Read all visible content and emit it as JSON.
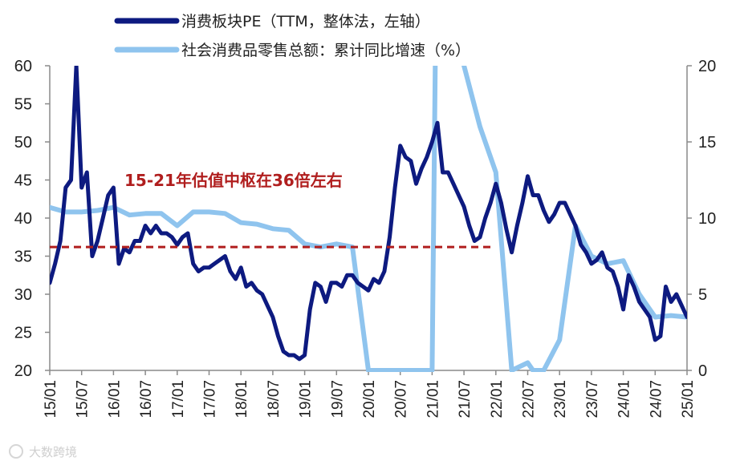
{
  "chart_data": {
    "type": "line",
    "x_ticks": [
      "15/01",
      "15/07",
      "16/01",
      "16/07",
      "17/01",
      "17/07",
      "18/01",
      "18/07",
      "19/01",
      "19/07",
      "20/01",
      "20/07",
      "21/01",
      "21/07",
      "22/01",
      "22/07",
      "23/01",
      "23/07",
      "24/01",
      "24/07",
      "25/01"
    ],
    "y_left": {
      "min": 20,
      "max": 60,
      "ticks": [
        20,
        25,
        30,
        35,
        40,
        45,
        50,
        55,
        60
      ]
    },
    "y_right": {
      "min": 0,
      "max": 20,
      "ticks": [
        0,
        5,
        10,
        15,
        20
      ]
    },
    "series": [
      {
        "name": "消费板块PE（TTM，整体法，左轴）",
        "axis": "left",
        "color": "#0d1a80",
        "points": [
          [
            "15/01",
            31.5
          ],
          [
            "15/02",
            34
          ],
          [
            "15/03",
            37
          ],
          [
            "15/04",
            44
          ],
          [
            "15/05",
            45
          ],
          [
            "15/06",
            60
          ],
          [
            "15/07",
            44
          ],
          [
            "15/08",
            46
          ],
          [
            "15/09",
            35
          ],
          [
            "15/10",
            37
          ],
          [
            "15/11",
            40
          ],
          [
            "15/12",
            43
          ],
          [
            "16/01",
            44
          ],
          [
            "16/02",
            34
          ],
          [
            "16/03",
            36
          ],
          [
            "16/04",
            35.5
          ],
          [
            "16/05",
            37
          ],
          [
            "16/06",
            37
          ],
          [
            "16/07",
            39
          ],
          [
            "16/08",
            38
          ],
          [
            "16/09",
            39
          ],
          [
            "16/10",
            38
          ],
          [
            "16/11",
            38
          ],
          [
            "16/12",
            37.5
          ],
          [
            "17/01",
            36.5
          ],
          [
            "17/02",
            37.5
          ],
          [
            "17/03",
            38
          ],
          [
            "17/04",
            34
          ],
          [
            "17/05",
            33
          ],
          [
            "17/06",
            33.5
          ],
          [
            "17/07",
            33.5
          ],
          [
            "17/08",
            34
          ],
          [
            "17/09",
            34.5
          ],
          [
            "17/10",
            35
          ],
          [
            "17/11",
            33
          ],
          [
            "17/12",
            32
          ],
          [
            "18/01",
            33.5
          ],
          [
            "18/02",
            31
          ],
          [
            "18/03",
            31.5
          ],
          [
            "18/04",
            30.5
          ],
          [
            "18/05",
            30
          ],
          [
            "18/06",
            28.5
          ],
          [
            "18/07",
            27
          ],
          [
            "18/08",
            24.5
          ],
          [
            "18/09",
            22.5
          ],
          [
            "18/10",
            22
          ],
          [
            "18/11",
            22
          ],
          [
            "18/12",
            21.5
          ],
          [
            "19/01",
            22
          ],
          [
            "19/02",
            28
          ],
          [
            "19/03",
            31.5
          ],
          [
            "19/04",
            31
          ],
          [
            "19/05",
            29
          ],
          [
            "19/06",
            31.5
          ],
          [
            "19/07",
            31.5
          ],
          [
            "19/08",
            31
          ],
          [
            "19/09",
            32.5
          ],
          [
            "19/10",
            32.5
          ],
          [
            "19/11",
            31.5
          ],
          [
            "19/12",
            31
          ],
          [
            "20/01",
            30.5
          ],
          [
            "20/02",
            32
          ],
          [
            "20/03",
            31.5
          ],
          [
            "20/04",
            33
          ],
          [
            "20/05",
            37.5
          ],
          [
            "20/06",
            44
          ],
          [
            "20/07",
            49.5
          ],
          [
            "20/08",
            48
          ],
          [
            "20/09",
            47.5
          ],
          [
            "20/10",
            44.5
          ],
          [
            "20/11",
            46.5
          ],
          [
            "20/12",
            48
          ],
          [
            "21/01",
            50
          ],
          [
            "21/02",
            52.5
          ],
          [
            "21/03",
            46
          ],
          [
            "21/04",
            46
          ],
          [
            "21/05",
            44.5
          ],
          [
            "21/06",
            43
          ],
          [
            "21/07",
            41.5
          ],
          [
            "21/08",
            39
          ],
          [
            "21/09",
            37
          ],
          [
            "21/10",
            37.5
          ],
          [
            "21/11",
            40
          ],
          [
            "21/12",
            42
          ],
          [
            "22/01",
            44.5
          ],
          [
            "22/02",
            42
          ],
          [
            "22/03",
            38.5
          ],
          [
            "22/04",
            35.5
          ],
          [
            "22/05",
            39
          ],
          [
            "22/06",
            42
          ],
          [
            "22/07",
            45.5
          ],
          [
            "22/08",
            43
          ],
          [
            "22/09",
            43
          ],
          [
            "22/10",
            41
          ],
          [
            "22/11",
            39.5
          ],
          [
            "22/12",
            40.5
          ],
          [
            "23/01",
            42
          ],
          [
            "23/02",
            42
          ],
          [
            "23/03",
            40.5
          ],
          [
            "23/04",
            39
          ],
          [
            "23/05",
            36.5
          ],
          [
            "23/06",
            35.5
          ],
          [
            "23/07",
            34
          ],
          [
            "23/08",
            34.5
          ],
          [
            "23/09",
            35.5
          ],
          [
            "23/10",
            33.5
          ],
          [
            "23/11",
            33
          ],
          [
            "23/12",
            31
          ],
          [
            "24/01",
            28
          ],
          [
            "24/02",
            32.5
          ],
          [
            "24/03",
            31
          ],
          [
            "24/04",
            29
          ],
          [
            "24/05",
            28
          ],
          [
            "24/06",
            27
          ],
          [
            "24/07",
            24
          ],
          [
            "24/08",
            24.5
          ],
          [
            "24/09",
            31
          ],
          [
            "24/10",
            29
          ],
          [
            "24/11",
            30
          ],
          [
            "24/12",
            28.5
          ],
          [
            "25/01",
            27
          ]
        ]
      },
      {
        "name": "社会消费品零售总额：累计同比增速（%）",
        "axis": "right",
        "color": "#8fc4ee",
        "points": [
          [
            "15/01",
            10.7
          ],
          [
            "15/04",
            10.4
          ],
          [
            "15/07",
            10.4
          ],
          [
            "15/10",
            10.5
          ],
          [
            "16/01",
            10.7
          ],
          [
            "16/04",
            10.2
          ],
          [
            "16/07",
            10.3
          ],
          [
            "16/10",
            10.3
          ],
          [
            "17/01",
            9.5
          ],
          [
            "17/04",
            10.4
          ],
          [
            "17/07",
            10.4
          ],
          [
            "17/10",
            10.3
          ],
          [
            "18/01",
            9.7
          ],
          [
            "18/04",
            9.6
          ],
          [
            "18/07",
            9.3
          ],
          [
            "18/10",
            9.2
          ],
          [
            "19/01",
            8.3
          ],
          [
            "19/04",
            8.1
          ],
          [
            "19/07",
            8.3
          ],
          [
            "19/10",
            8.1
          ],
          [
            "20/01",
            0
          ],
          [
            "21/01",
            0
          ],
          [
            "21/02",
            34
          ],
          [
            "21/04",
            28
          ],
          [
            "21/07",
            20
          ],
          [
            "21/10",
            16
          ],
          [
            "22/01",
            13
          ],
          [
            "22/04",
            0
          ],
          [
            "22/07",
            0.5
          ],
          [
            "22/08",
            0
          ],
          [
            "22/10",
            0
          ],
          [
            "23/01",
            2
          ],
          [
            "23/04",
            9.5
          ],
          [
            "23/07",
            7.5
          ],
          [
            "23/10",
            7
          ],
          [
            "24/01",
            7.2
          ],
          [
            "24/04",
            5
          ],
          [
            "24/07",
            3.5
          ],
          [
            "24/10",
            3.6
          ],
          [
            "25/01",
            3.5
          ]
        ]
      }
    ],
    "annotation": {
      "text": "15-21年估值中枢在36倍左右",
      "value": 36.2,
      "from": "15/01",
      "to": "21/12",
      "color": "#b01e1e"
    }
  },
  "watermark": "大数跨境"
}
